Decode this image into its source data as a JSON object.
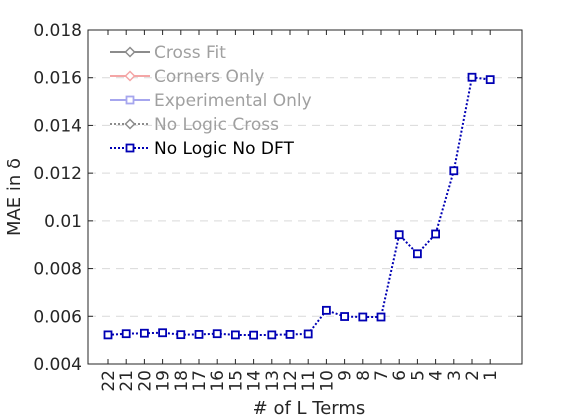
{
  "chart_data": {
    "type": "line",
    "title": "",
    "xlabel": "# of L Terms",
    "ylabel": "MAE in δ",
    "categories": [
      "22",
      "21",
      "20",
      "19",
      "18",
      "17",
      "16",
      "15",
      "14",
      "13",
      "12",
      "11",
      "10",
      "9",
      "8",
      "7",
      "6",
      "5",
      "4",
      "3",
      "2",
      "1"
    ],
    "ylim": [
      0.004,
      0.018
    ],
    "yticks": [
      0.004,
      0.006,
      0.008,
      0.01,
      0.012,
      0.014,
      0.016,
      0.018
    ],
    "ytick_labels": [
      "0.004",
      "0.006",
      "0.008",
      "0.01",
      "0.012",
      "0.014",
      "0.016",
      "0.018"
    ],
    "grid": "horizontal dashed",
    "legend_position": "top-left",
    "legend": [
      {
        "name": "Cross Fit",
        "color": "#8c8c8c",
        "text_color": "#a0a0a0",
        "line": "solid",
        "marker": "diamond"
      },
      {
        "name": "Corners Only",
        "color": "#f4a6a6",
        "text_color": "#a0a0a0",
        "line": "solid",
        "marker": "diamond"
      },
      {
        "name": "Experimental Only",
        "color": "#a6a6ee",
        "text_color": "#a0a0a0",
        "line": "solid",
        "marker": "square"
      },
      {
        "name": "No Logic Cross",
        "color": "#8c8c8c",
        "text_color": "#a0a0a0",
        "line": "dotted",
        "marker": "diamond"
      },
      {
        "name": "No Logic No DFT",
        "color": "#0000b4",
        "text_color": "#000000",
        "line": "dotted",
        "marker": "square"
      }
    ],
    "series": [
      {
        "name": "No Logic No DFT",
        "color": "#0000b4",
        "values": [
          0.00522,
          0.00527,
          0.00529,
          0.00531,
          0.00523,
          0.00524,
          0.00527,
          0.00522,
          0.00521,
          0.00522,
          0.00524,
          0.00526,
          0.00625,
          0.00599,
          0.00597,
          0.00597,
          0.00942,
          0.00862,
          0.00945,
          0.0121,
          0.01602,
          0.01592
        ]
      }
    ]
  }
}
